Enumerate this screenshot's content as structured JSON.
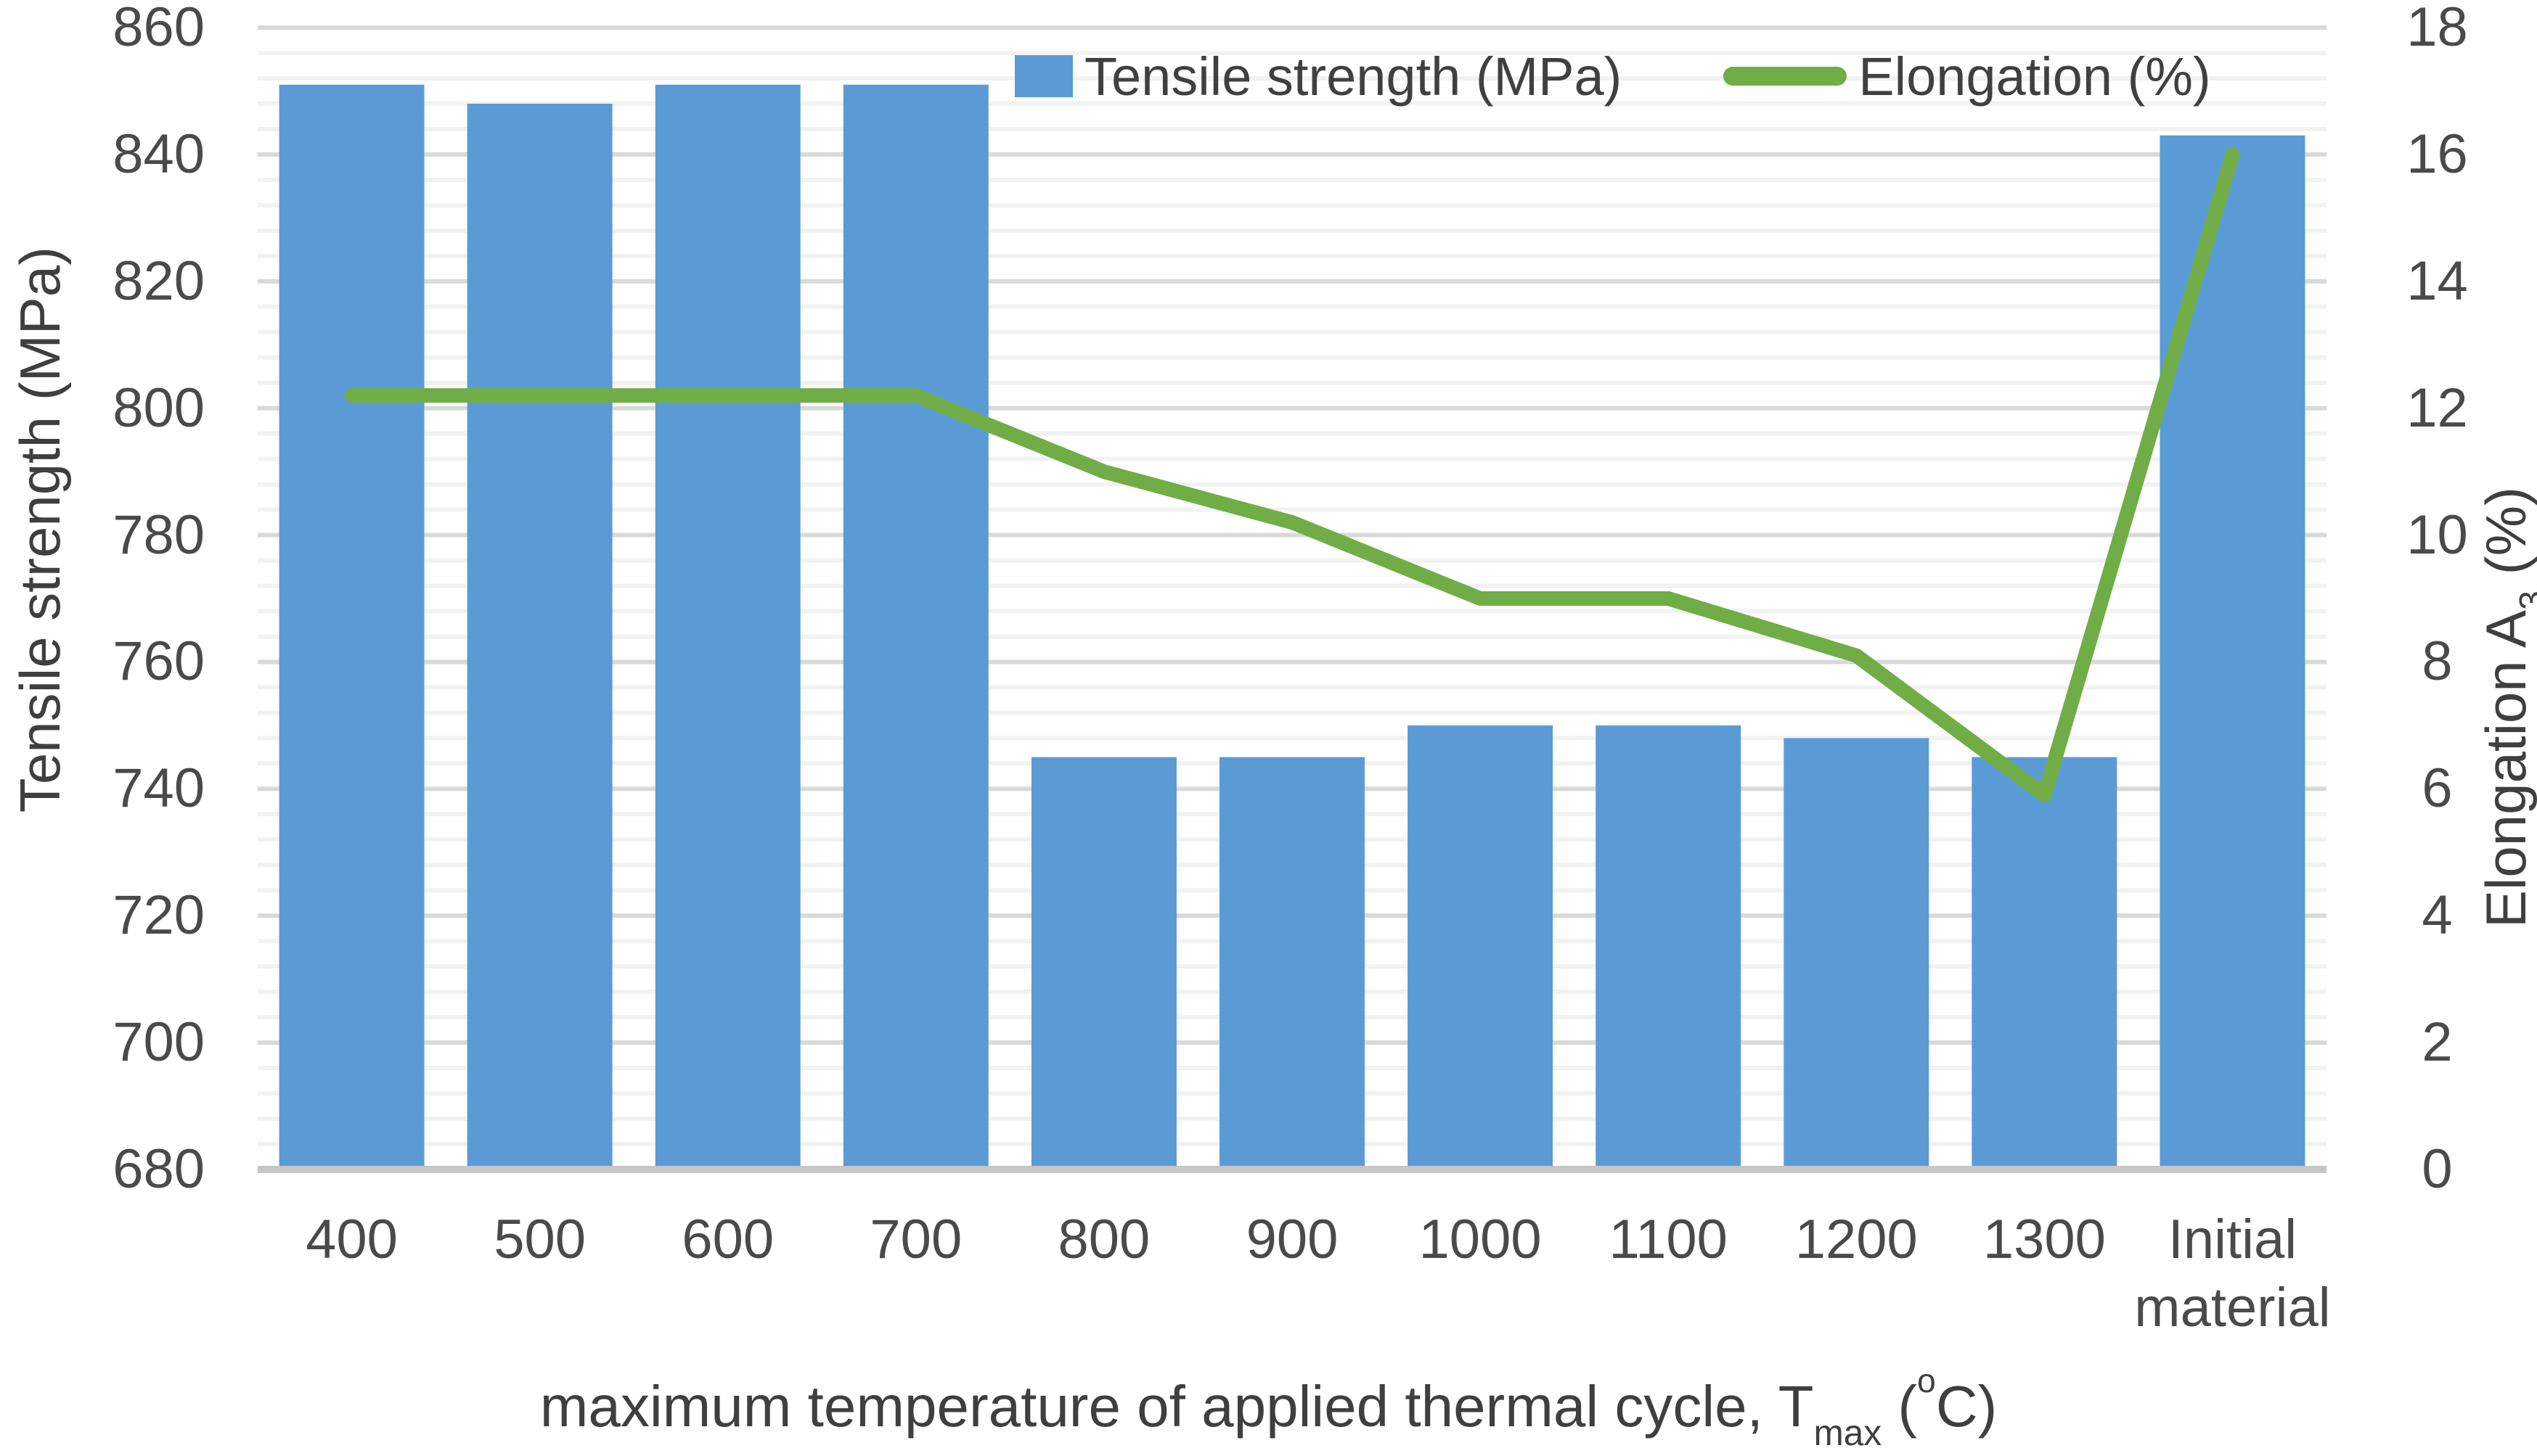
{
  "chart_data": {
    "type": "combo",
    "categories": [
      "400",
      "500",
      "600",
      "700",
      "800",
      "900",
      "1000",
      "1100",
      "1200",
      "1300",
      "Initial material"
    ],
    "series": [
      {
        "name": "Tensile strength (MPa)",
        "type": "bar",
        "axis": "left",
        "color": "#5B9BD5",
        "values": [
          851,
          848,
          851,
          851,
          745,
          745,
          750,
          750,
          748,
          745,
          843
        ]
      },
      {
        "name": "Elongation (%)",
        "type": "line",
        "axis": "right",
        "color": "#70AD47",
        "values": [
          12.2,
          12.2,
          12.2,
          12.2,
          11,
          10.2,
          9,
          9,
          8.1,
          5.9,
          16
        ]
      }
    ],
    "left_axis": {
      "label": "Tensile strength (MPa)",
      "min": 680,
      "max": 860,
      "major_step": 20,
      "minor_step": 4,
      "tick_labels": [
        "680",
        "700",
        "720",
        "740",
        "760",
        "780",
        "800",
        "820",
        "840",
        "860"
      ]
    },
    "right_axis": {
      "label_parts": {
        "main": "Elongation A",
        "sub": "3",
        "after": " (%)"
      },
      "min": 0,
      "max": 18,
      "major_step": 2,
      "tick_labels": [
        "0",
        "2",
        "4",
        "6",
        "8",
        "10",
        "12",
        "14",
        "16",
        "18"
      ]
    },
    "x_axis": {
      "title_parts": {
        "main": "maximum temperature of applied thermal cycle, T",
        "sub": "max",
        "after": " (",
        "sup": "o",
        "end": "C)"
      }
    },
    "legend": {
      "position": "top"
    },
    "grid": {
      "major_color": "#D9D9D9",
      "minor_color": "#F2F2F2",
      "axis_line_color": "#C6C6C6"
    },
    "text_color": "#404040"
  }
}
